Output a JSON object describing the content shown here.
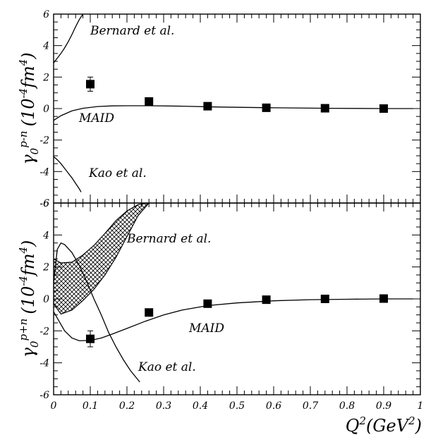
{
  "chart_data": [
    {
      "type": "line",
      "ylabel": "γ0p-n (10-4fm4)",
      "ylabel_parts": {
        "sym": "γ",
        "sub": "0",
        "sup": "p-n",
        "unit_a": "(10",
        "unit_exp1": "-4",
        "unit_b": "fm",
        "unit_exp2": "4",
        "unit_c": ")"
      },
      "xlim": [
        0,
        1
      ],
      "ylim": [
        -6,
        6
      ],
      "yticks": [
        -6,
        -4,
        -2,
        0,
        2,
        4,
        6
      ],
      "ytick_labels": [
        "-6",
        "-4",
        "-2",
        "0",
        "2",
        "4",
        "6"
      ],
      "grid": false,
      "points": {
        "name": "data",
        "x": [
          0.1,
          0.26,
          0.42,
          0.58,
          0.74,
          0.9
        ],
        "y": [
          1.55,
          0.45,
          0.15,
          0.05,
          0.02,
          0.0
        ],
        "err": [
          0.45,
          0.12,
          0.08,
          0.06,
          0.05,
          0.05
        ]
      },
      "series": [
        {
          "label": "MAID",
          "x": [
            0.0,
            0.02,
            0.05,
            0.08,
            0.12,
            0.16,
            0.2,
            0.26,
            0.35,
            0.45,
            0.6,
            0.75,
            0.9,
            0.98
          ],
          "y": [
            -0.75,
            -0.45,
            -0.15,
            0.02,
            0.13,
            0.17,
            0.18,
            0.18,
            0.15,
            0.1,
            0.05,
            0.02,
            0.0,
            0.0
          ]
        },
        {
          "label": "Bernard et al.",
          "x": [
            0.0,
            0.01,
            0.02,
            0.03,
            0.04,
            0.05,
            0.06,
            0.07,
            0.08
          ],
          "y": [
            2.9,
            3.2,
            3.5,
            3.85,
            4.25,
            4.7,
            5.2,
            5.65,
            6.0
          ]
        },
        {
          "label": "Kao et al.",
          "x": [
            0.0,
            0.01,
            0.02,
            0.03,
            0.04,
            0.05,
            0.06,
            0.07,
            0.075
          ],
          "y": [
            -3.05,
            -3.25,
            -3.5,
            -3.8,
            -4.1,
            -4.4,
            -4.75,
            -5.1,
            -5.3
          ]
        }
      ],
      "annotations": [
        "Bernard et al.",
        "MAID",
        "Kao et al."
      ]
    },
    {
      "type": "line",
      "ylabel": "γ0p+n (10-4fm4)",
      "ylabel_parts": {
        "sym": "γ",
        "sub": "0",
        "sup": "p+n",
        "unit_a": "(10",
        "unit_exp1": "-4",
        "unit_b": "fm",
        "unit_exp2": "4",
        "unit_c": ")"
      },
      "xlabel": "Q2(GeV2)",
      "xlabel_parts": {
        "q": "Q",
        "sup1": "2",
        "mid": "(GeV",
        "sup2": "2",
        "end": ")"
      },
      "xlim": [
        0,
        1
      ],
      "ylim": [
        -6,
        6
      ],
      "xticks": [
        0,
        0.1,
        0.2,
        0.3,
        0.4,
        0.5,
        0.6,
        0.7,
        0.8,
        0.9,
        1
      ],
      "xtick_labels": [
        "0",
        "0.1",
        "0.2",
        "0.3",
        "0.4",
        "0.5",
        "0.6",
        "0.7",
        "0.8",
        "0.9",
        "1"
      ],
      "yticks": [
        -6,
        -4,
        -2,
        0,
        2,
        4,
        6
      ],
      "ytick_labels": [
        "-6",
        "-4",
        "-2",
        "0",
        "2",
        "4",
        "6"
      ],
      "grid": false,
      "points": {
        "name": "data",
        "x": [
          0.1,
          0.26,
          0.42,
          0.58,
          0.74,
          0.9
        ],
        "y": [
          -2.5,
          -0.85,
          -0.3,
          -0.05,
          0.0,
          0.02
        ],
        "err": [
          0.5,
          0.15,
          0.1,
          0.07,
          0.06,
          0.06
        ]
      },
      "series": [
        {
          "label": "MAID",
          "x": [
            0.0,
            0.01,
            0.02,
            0.03,
            0.05,
            0.07,
            0.1,
            0.13,
            0.16,
            0.2,
            0.25,
            0.3,
            0.35,
            0.42,
            0.5,
            0.6,
            0.7,
            0.8,
            0.9,
            0.98
          ],
          "y": [
            -0.8,
            -1.2,
            -1.6,
            -2.0,
            -2.45,
            -2.62,
            -2.6,
            -2.45,
            -2.2,
            -1.85,
            -1.4,
            -1.0,
            -0.7,
            -0.42,
            -0.25,
            -0.12,
            -0.05,
            -0.02,
            0.0,
            0.0
          ]
        },
        {
          "label": "Kao et al.",
          "x": [
            0.0,
            0.01,
            0.02,
            0.03,
            0.05,
            0.07,
            0.09,
            0.11,
            0.13,
            0.15,
            0.17,
            0.19,
            0.21,
            0.235
          ],
          "y": [
            1.0,
            3.1,
            3.5,
            3.4,
            2.9,
            2.1,
            1.1,
            0.0,
            -1.0,
            -2.1,
            -3.0,
            -3.8,
            -4.5,
            -5.2
          ]
        }
      ],
      "bands": [
        {
          "label": "Bernard et al.",
          "x": [
            0.0,
            0.02,
            0.05,
            0.08,
            0.11,
            0.14,
            0.17,
            0.2,
            0.23,
            0.26
          ],
          "upper": [
            2.5,
            2.25,
            2.3,
            2.75,
            3.35,
            4.1,
            4.9,
            5.5,
            5.9,
            6.0
          ],
          "lower": [
            -0.3,
            -0.95,
            -0.7,
            -0.1,
            0.6,
            1.5,
            2.6,
            3.9,
            5.2,
            6.0
          ]
        }
      ],
      "annotations": [
        "Bernard et al.",
        "MAID",
        "Kao et al."
      ]
    }
  ]
}
